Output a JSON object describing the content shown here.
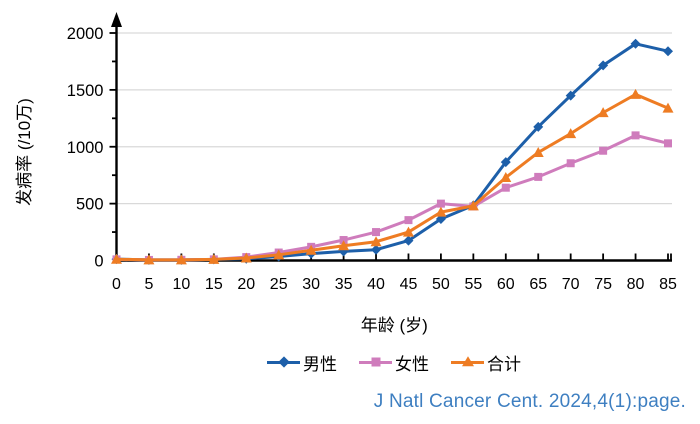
{
  "figure": {
    "y_axis_title": "发病率 (/10万)",
    "x_axis_title": "年龄 (岁)"
  },
  "citation": {
    "text": "J Natl Cancer Cent. 2024,4(1):page.",
    "color": "#3e7fc1"
  },
  "chart_data": {
    "type": "line",
    "title": "",
    "xlabel": "年龄 (岁)",
    "ylabel": "发病率 (/10万)",
    "x": [
      0,
      5,
      10,
      15,
      20,
      25,
      30,
      35,
      40,
      45,
      50,
      55,
      60,
      65,
      70,
      75,
      80,
      85
    ],
    "ylim": [
      0,
      2000
    ],
    "yticks": [
      0,
      500,
      1000,
      1500,
      2000
    ],
    "ytick_minor_interval": 250,
    "grid": "horizontal major gridlines only",
    "legend_position": "bottom center",
    "axis_color": "#000000",
    "gridline_color": "#d9d9d9",
    "series": [
      {
        "name": "男性",
        "marker": "diamond",
        "color": "#1d5fa9",
        "values": [
          12,
          6,
          6,
          10,
          15,
          35,
          60,
          80,
          95,
          175,
          365,
          485,
          865,
          1175,
          1450,
          1715,
          1905,
          1840
        ]
      },
      {
        "name": "女性",
        "marker": "square",
        "color": "#cf7cbc",
        "values": [
          10,
          5,
          6,
          10,
          30,
          70,
          120,
          180,
          250,
          355,
          500,
          475,
          640,
          735,
          855,
          965,
          1100,
          1030
        ]
      },
      {
        "name": "合计",
        "marker": "triangle",
        "color": "#ee7c23",
        "values": [
          11,
          6,
          6,
          10,
          22,
          50,
          90,
          130,
          165,
          250,
          425,
          480,
          730,
          950,
          1115,
          1300,
          1460,
          1340
        ]
      }
    ]
  }
}
